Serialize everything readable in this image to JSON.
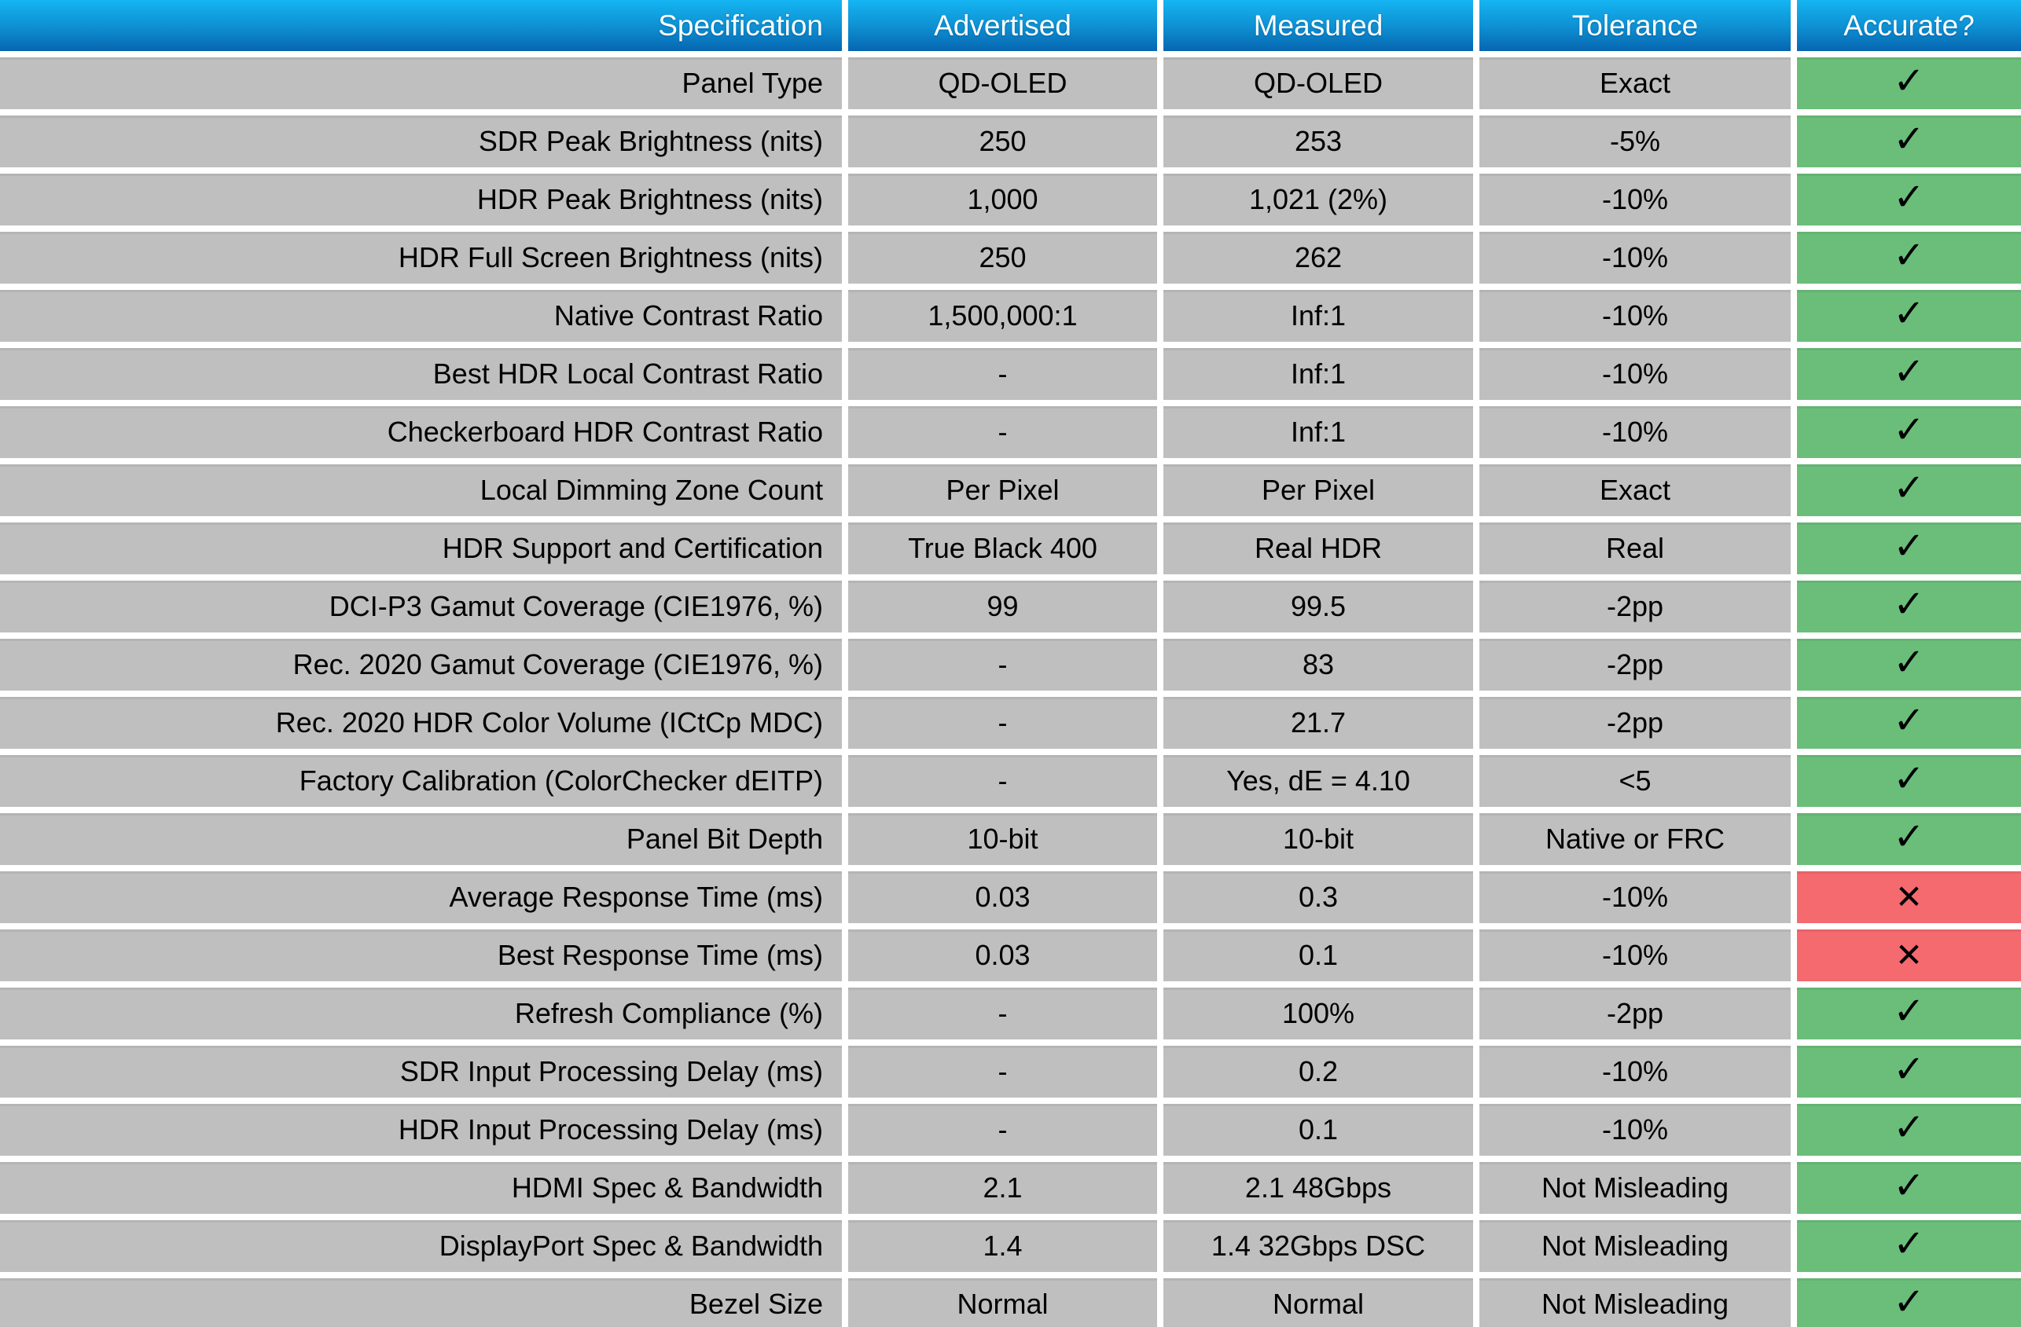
{
  "icons": {
    "pass": "✓",
    "fail": "✕"
  },
  "colors": {
    "header_gradient_top": "#15b5f3",
    "header_gradient_bottom": "#0765b1",
    "row_background": "#bfbfbf",
    "pass_background": "#6abe7a",
    "fail_background": "#f46a6e",
    "divider": "#ffffff",
    "header_text": "#ffffff",
    "body_text": "#000000"
  },
  "chart_data": {
    "type": "table",
    "columns": [
      "Specification",
      "Advertised",
      "Measured",
      "Tolerance",
      "Accurate?"
    ],
    "rows": [
      {
        "specification": "Panel Type",
        "advertised": "QD-OLED",
        "measured": "QD-OLED",
        "tolerance": "Exact",
        "accurate": true
      },
      {
        "specification": "SDR Peak Brightness (nits)",
        "advertised": "250",
        "measured": "253",
        "tolerance": "-5%",
        "accurate": true
      },
      {
        "specification": "HDR Peak Brightness (nits)",
        "advertised": "1,000",
        "measured": "1,021 (2%)",
        "tolerance": "-10%",
        "accurate": true
      },
      {
        "specification": "HDR Full Screen Brightness (nits)",
        "advertised": "250",
        "measured": "262",
        "tolerance": "-10%",
        "accurate": true
      },
      {
        "specification": "Native Contrast Ratio",
        "advertised": "1,500,000:1",
        "measured": "Inf:1",
        "tolerance": "-10%",
        "accurate": true
      },
      {
        "specification": "Best HDR Local Contrast Ratio",
        "advertised": "-",
        "measured": "Inf:1",
        "tolerance": "-10%",
        "accurate": true
      },
      {
        "specification": "Checkerboard HDR Contrast Ratio",
        "advertised": "-",
        "measured": "Inf:1",
        "tolerance": "-10%",
        "accurate": true
      },
      {
        "specification": "Local Dimming Zone Count",
        "advertised": "Per Pixel",
        "measured": "Per Pixel",
        "tolerance": "Exact",
        "accurate": true
      },
      {
        "specification": "HDR Support and Certification",
        "advertised": "True Black 400",
        "measured": "Real HDR",
        "tolerance": "Real",
        "accurate": true
      },
      {
        "specification": "DCI-P3 Gamut Coverage (CIE1976, %)",
        "advertised": "99",
        "measured": "99.5",
        "tolerance": "-2pp",
        "accurate": true
      },
      {
        "specification": "Rec. 2020 Gamut Coverage (CIE1976, %)",
        "advertised": "-",
        "measured": "83",
        "tolerance": "-2pp",
        "accurate": true
      },
      {
        "specification": "Rec. 2020 HDR Color Volume (ICtCp MDC)",
        "advertised": "-",
        "measured": "21.7",
        "tolerance": "-2pp",
        "accurate": true
      },
      {
        "specification": "Factory Calibration (ColorChecker dEITP)",
        "advertised": "-",
        "measured": "Yes, dE = 4.10",
        "tolerance": "<5",
        "accurate": true
      },
      {
        "specification": "Panel Bit Depth",
        "advertised": "10-bit",
        "measured": "10-bit",
        "tolerance": "Native or FRC",
        "accurate": true
      },
      {
        "specification": "Average Response Time (ms)",
        "advertised": "0.03",
        "measured": "0.3",
        "tolerance": "-10%",
        "accurate": false
      },
      {
        "specification": "Best Response Time (ms)",
        "advertised": "0.03",
        "measured": "0.1",
        "tolerance": "-10%",
        "accurate": false
      },
      {
        "specification": "Refresh Compliance (%)",
        "advertised": "-",
        "measured": "100%",
        "tolerance": "-2pp",
        "accurate": true
      },
      {
        "specification": "SDR Input Processing Delay (ms)",
        "advertised": "-",
        "measured": "0.2",
        "tolerance": "-10%",
        "accurate": true
      },
      {
        "specification": "HDR Input Processing Delay (ms)",
        "advertised": "-",
        "measured": "0.1",
        "tolerance": "-10%",
        "accurate": true
      },
      {
        "specification": "HDMI Spec & Bandwidth",
        "advertised": "2.1",
        "measured": "2.1 48Gbps",
        "tolerance": "Not Misleading",
        "accurate": true
      },
      {
        "specification": "DisplayPort Spec & Bandwidth",
        "advertised": "1.4",
        "measured": "1.4 32Gbps DSC",
        "tolerance": "Not Misleading",
        "accurate": true
      },
      {
        "specification": "Bezel Size",
        "advertised": "Normal",
        "measured": "Normal",
        "tolerance": "Not Misleading",
        "accurate": true
      }
    ]
  }
}
